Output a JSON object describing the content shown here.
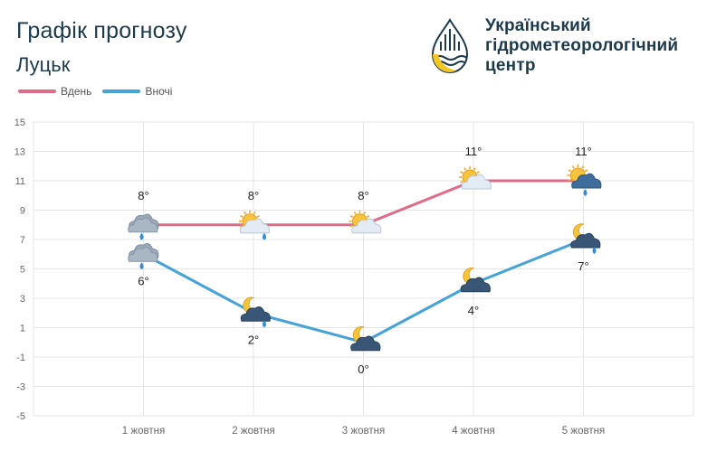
{
  "header": {
    "title": "Графік прогнозу",
    "city": "Луцьк",
    "org_lines": [
      "Український",
      "гідрометеорологічний",
      "центр"
    ]
  },
  "legend": [
    {
      "name": "Вдень",
      "color": "#e06b88"
    },
    {
      "name": "Вночі",
      "color": "#45a3d8"
    }
  ],
  "chart_data": {
    "type": "line",
    "categories": [
      "1 жовтня",
      "2 жовтня",
      "3 жовтня",
      "4 жовтня",
      "5 жовтня"
    ],
    "series": [
      {
        "name": "Вдень",
        "color": "#e06b88",
        "values": [
          8,
          8,
          8,
          11,
          11
        ],
        "labels": [
          "8°",
          "8°",
          "8°",
          "11°",
          "11°"
        ],
        "icons": [
          "cloud-rain",
          "sun-cloud-rain",
          "sun-cloud",
          "sun-cloud",
          "sun-dark-cloud-rain"
        ]
      },
      {
        "name": "Вночі",
        "color": "#45a3d8",
        "values": [
          6,
          2,
          0,
          4,
          7
        ],
        "labels": [
          "6°",
          "2°",
          "0°",
          "4°",
          "7°"
        ],
        "icons": [
          "cloud-rain",
          "moon-cloud-rain",
          "moon-cloud",
          "moon-cloud",
          "moon-cloud-rain"
        ]
      }
    ],
    "ylim": [
      -5,
      15
    ],
    "yticks": [
      "15",
      "13",
      "11",
      "9",
      "7",
      "5",
      "3",
      "1",
      "-1",
      "-3",
      "-5"
    ],
    "ytick_values": [
      15,
      13,
      11,
      9,
      7,
      5,
      3,
      1,
      -1,
      -3,
      -5
    ],
    "xlabel": "",
    "ylabel": "",
    "grid": true
  }
}
